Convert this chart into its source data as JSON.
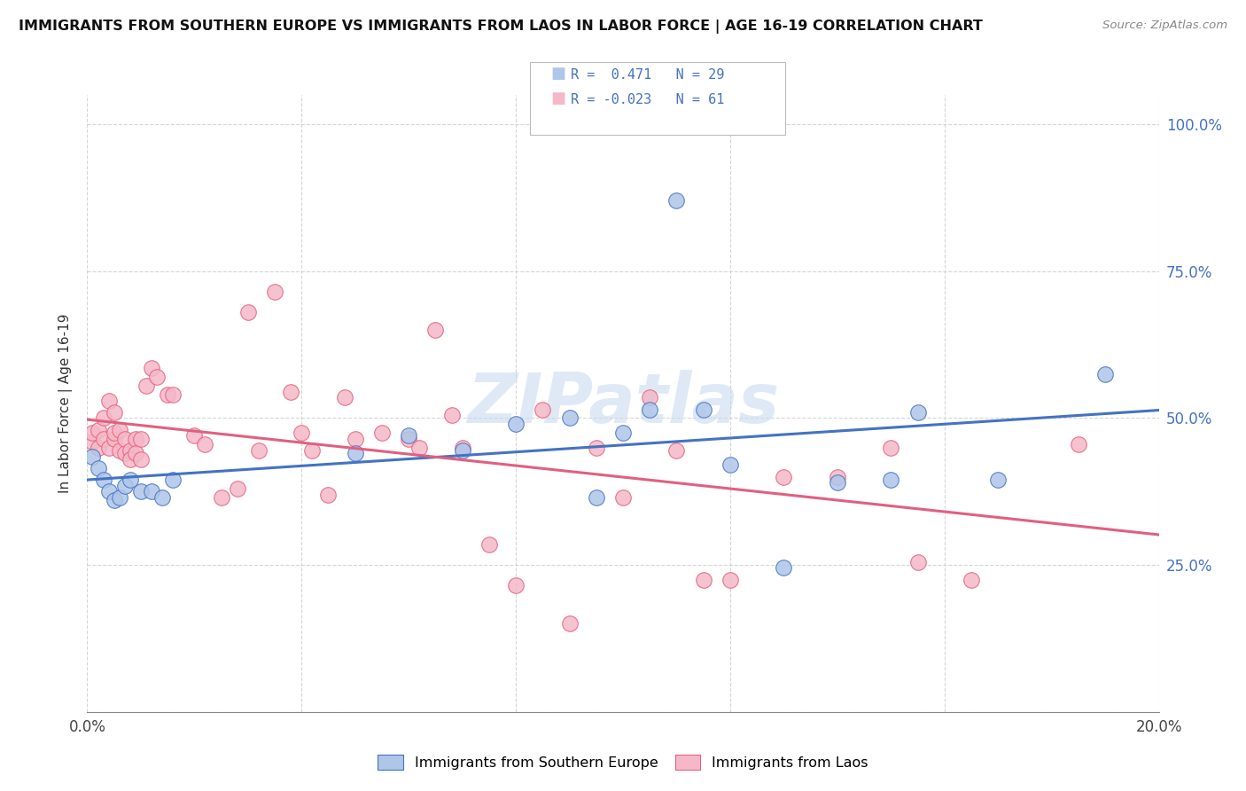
{
  "title": "IMMIGRANTS FROM SOUTHERN EUROPE VS IMMIGRANTS FROM LAOS IN LABOR FORCE | AGE 16-19 CORRELATION CHART",
  "source": "Source: ZipAtlas.com",
  "ylabel": "In Labor Force | Age 16-19",
  "xlim": [
    0.0,
    0.2
  ],
  "ylim": [
    0.0,
    1.05
  ],
  "ytick_positions": [
    0.0,
    0.25,
    0.5,
    0.75,
    1.0
  ],
  "ytick_labels": [
    "",
    "25.0%",
    "50.0%",
    "75.0%",
    "100.0%"
  ],
  "xtick_positions": [
    0.0,
    0.04,
    0.08,
    0.12,
    0.16,
    0.2
  ],
  "xtick_labels": [
    "0.0%",
    "",
    "",
    "",
    "",
    "20.0%"
  ],
  "blue_R": 0.471,
  "blue_N": 29,
  "pink_R": -0.023,
  "pink_N": 61,
  "blue_fill_color": "#aec6e8",
  "pink_fill_color": "#f4b8c8",
  "blue_edge_color": "#4472c4",
  "pink_edge_color": "#e8607a",
  "blue_line_color": "#4472c4",
  "pink_line_color": "#e06080",
  "watermark": "ZIPatlas",
  "blue_x": [
    0.001,
    0.002,
    0.003,
    0.004,
    0.005,
    0.006,
    0.007,
    0.008,
    0.01,
    0.012,
    0.014,
    0.016,
    0.05,
    0.06,
    0.07,
    0.08,
    0.09,
    0.095,
    0.1,
    0.105,
    0.11,
    0.115,
    0.12,
    0.13,
    0.14,
    0.15,
    0.155,
    0.17,
    0.19
  ],
  "blue_y": [
    0.435,
    0.415,
    0.395,
    0.375,
    0.36,
    0.365,
    0.385,
    0.395,
    0.375,
    0.375,
    0.365,
    0.395,
    0.44,
    0.47,
    0.445,
    0.49,
    0.5,
    0.365,
    0.475,
    0.515,
    0.87,
    0.515,
    0.42,
    0.245,
    0.39,
    0.395,
    0.51,
    0.395,
    0.575
  ],
  "pink_x": [
    0.001,
    0.001,
    0.002,
    0.002,
    0.003,
    0.003,
    0.004,
    0.004,
    0.005,
    0.005,
    0.005,
    0.006,
    0.006,
    0.007,
    0.007,
    0.008,
    0.008,
    0.009,
    0.009,
    0.01,
    0.01,
    0.011,
    0.012,
    0.013,
    0.015,
    0.016,
    0.02,
    0.022,
    0.025,
    0.028,
    0.03,
    0.032,
    0.035,
    0.038,
    0.04,
    0.042,
    0.045,
    0.048,
    0.05,
    0.055,
    0.06,
    0.062,
    0.065,
    0.068,
    0.07,
    0.075,
    0.08,
    0.085,
    0.09,
    0.095,
    0.1,
    0.105,
    0.11,
    0.115,
    0.12,
    0.13,
    0.14,
    0.15,
    0.155,
    0.165,
    0.185
  ],
  "pink_y": [
    0.46,
    0.475,
    0.45,
    0.48,
    0.5,
    0.465,
    0.53,
    0.45,
    0.465,
    0.475,
    0.51,
    0.445,
    0.48,
    0.44,
    0.465,
    0.445,
    0.43,
    0.465,
    0.44,
    0.43,
    0.465,
    0.555,
    0.585,
    0.57,
    0.54,
    0.54,
    0.47,
    0.455,
    0.365,
    0.38,
    0.68,
    0.445,
    0.715,
    0.545,
    0.475,
    0.445,
    0.37,
    0.535,
    0.465,
    0.475,
    0.465,
    0.45,
    0.65,
    0.505,
    0.45,
    0.285,
    0.215,
    0.515,
    0.15,
    0.45,
    0.365,
    0.535,
    0.445,
    0.225,
    0.225,
    0.4,
    0.4,
    0.45,
    0.255,
    0.225,
    0.455
  ]
}
